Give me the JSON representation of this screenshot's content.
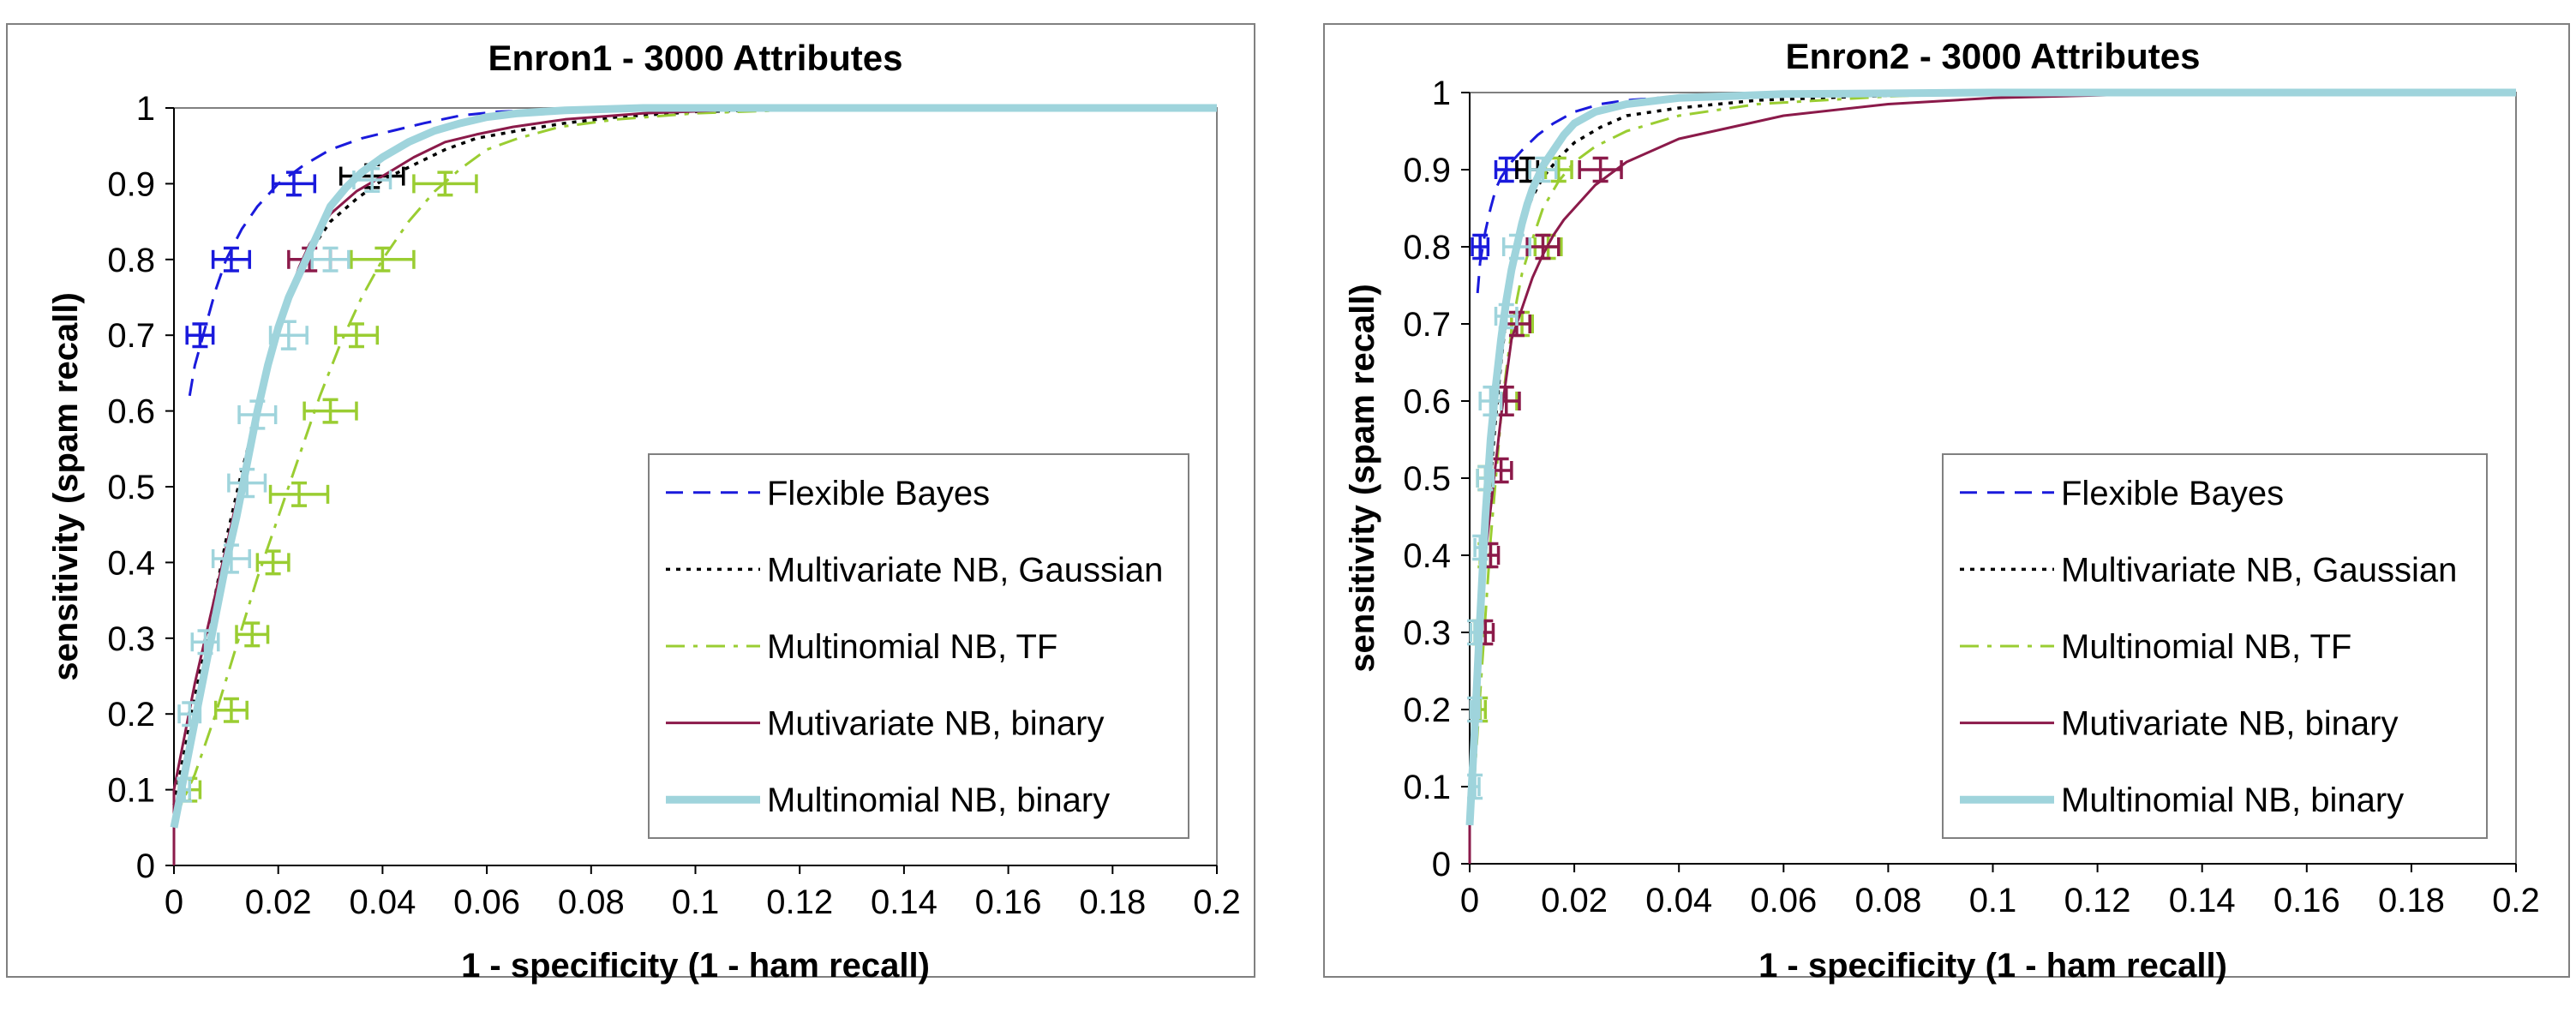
{
  "chart_data": [
    {
      "type": "line",
      "title": "Enron1 - 3000 Attributes",
      "xlabel": "1 - specificity (1 - ham recall)",
      "ylabel": "sensitivity (spam recall)",
      "xlim": [
        0,
        0.2
      ],
      "ylim": [
        0,
        1
      ],
      "xticks": [
        "0",
        "0.02",
        "0.04",
        "0.06",
        "0.08",
        "0.1",
        "0.12",
        "0.14",
        "0.16",
        "0.18",
        "0.2"
      ],
      "yticks": [
        "0",
        "0.1",
        "0.2",
        "0.3",
        "0.4",
        "0.5",
        "0.6",
        "0.7",
        "0.8",
        "0.9",
        "1"
      ],
      "grid": false,
      "legend_position": "lower-right",
      "series": [
        {
          "name": "Flexible Bayes",
          "color": "#1a1adc",
          "dash": "dash",
          "x": [
            0.003,
            0.004,
            0.006,
            0.008,
            0.01,
            0.013,
            0.016,
            0.02,
            0.025,
            0.03,
            0.036,
            0.042,
            0.048,
            0.055,
            0.062,
            0.075,
            0.09,
            0.11,
            0.14,
            0.2
          ],
          "y": [
            0.62,
            0.66,
            0.71,
            0.76,
            0.8,
            0.84,
            0.87,
            0.9,
            0.925,
            0.945,
            0.96,
            0.97,
            0.98,
            0.99,
            0.995,
            0.998,
            1.0,
            1.0,
            1.0,
            1.0
          ],
          "error_points": [
            {
              "x": 0.005,
              "y": 0.7,
              "xerr": 0.0025,
              "yerr": 0.015
            },
            {
              "x": 0.011,
              "y": 0.8,
              "xerr": 0.0035,
              "yerr": 0.015
            },
            {
              "x": 0.023,
              "y": 0.9,
              "xerr": 0.004,
              "yerr": 0.015
            }
          ]
        },
        {
          "name": "Multivariate NB, Gaussian",
          "color": "#000000",
          "dash": "dot",
          "x": [
            0.0,
            0.002,
            0.004,
            0.006,
            0.008,
            0.01,
            0.013,
            0.016,
            0.019,
            0.022,
            0.026,
            0.03,
            0.035,
            0.04,
            0.046,
            0.052,
            0.058,
            0.066,
            0.075,
            0.085,
            0.1,
            0.13,
            0.2
          ],
          "y": [
            0.08,
            0.15,
            0.22,
            0.29,
            0.36,
            0.43,
            0.52,
            0.6,
            0.68,
            0.75,
            0.81,
            0.85,
            0.88,
            0.905,
            0.925,
            0.945,
            0.96,
            0.97,
            0.98,
            0.988,
            0.995,
            1.0,
            1.0
          ],
          "error_points": [
            {
              "x": 0.038,
              "y": 0.91,
              "xerr": 0.006,
              "yerr": 0.015
            }
          ]
        },
        {
          "name": "Multinomial NB, TF",
          "color": "#9acd32",
          "dash": "dashdot",
          "x": [
            0.0,
            0.004,
            0.008,
            0.012,
            0.016,
            0.02,
            0.024,
            0.028,
            0.032,
            0.036,
            0.04,
            0.045,
            0.05,
            0.055,
            0.06,
            0.066,
            0.074,
            0.085,
            0.1,
            0.13,
            0.2
          ],
          "y": [
            0.06,
            0.12,
            0.2,
            0.29,
            0.38,
            0.46,
            0.54,
            0.62,
            0.69,
            0.75,
            0.8,
            0.85,
            0.89,
            0.92,
            0.945,
            0.96,
            0.975,
            0.985,
            0.993,
            1.0,
            1.0
          ],
          "error_points": [
            {
              "x": 0.003,
              "y": 0.1,
              "xerr": 0.002,
              "yerr": 0.015
            },
            {
              "x": 0.011,
              "y": 0.205,
              "xerr": 0.003,
              "yerr": 0.015
            },
            {
              "x": 0.015,
              "y": 0.305,
              "xerr": 0.003,
              "yerr": 0.015
            },
            {
              "x": 0.019,
              "y": 0.4,
              "xerr": 0.003,
              "yerr": 0.015
            },
            {
              "x": 0.024,
              "y": 0.49,
              "xerr": 0.0055,
              "yerr": 0.015
            },
            {
              "x": 0.03,
              "y": 0.6,
              "xerr": 0.005,
              "yerr": 0.015
            },
            {
              "x": 0.035,
              "y": 0.7,
              "xerr": 0.004,
              "yerr": 0.015
            },
            {
              "x": 0.04,
              "y": 0.8,
              "xerr": 0.006,
              "yerr": 0.015
            },
            {
              "x": 0.052,
              "y": 0.9,
              "xerr": 0.006,
              "yerr": 0.015
            }
          ]
        },
        {
          "name": "Mutivariate NB, binary",
          "color": "#8b1a4a",
          "dash": "solid",
          "x": [
            0.0,
            0.0,
            0.002,
            0.004,
            0.006,
            0.008,
            0.01,
            0.012,
            0.014,
            0.016,
            0.018,
            0.02,
            0.022,
            0.024,
            0.026,
            0.03,
            0.035,
            0.04,
            0.046,
            0.052,
            0.058,
            0.065,
            0.075,
            0.09,
            0.11,
            0.2
          ],
          "y": [
            0.0,
            0.1,
            0.17,
            0.24,
            0.3,
            0.36,
            0.42,
            0.48,
            0.54,
            0.6,
            0.66,
            0.71,
            0.75,
            0.79,
            0.82,
            0.86,
            0.89,
            0.91,
            0.935,
            0.955,
            0.965,
            0.975,
            0.985,
            0.993,
            0.998,
            1.0
          ],
          "error_points": [
            {
              "x": 0.026,
              "y": 0.8,
              "xerr": 0.004,
              "yerr": 0.015
            }
          ]
        },
        {
          "name": "Multinomial NB, binary",
          "color": "#9fd4dc",
          "dash": "thick",
          "x": [
            0.0,
            0.002,
            0.004,
            0.006,
            0.008,
            0.01,
            0.012,
            0.014,
            0.016,
            0.018,
            0.02,
            0.022,
            0.024,
            0.026,
            0.028,
            0.03,
            0.033,
            0.036,
            0.04,
            0.045,
            0.05,
            0.055,
            0.06,
            0.066,
            0.075,
            0.09,
            0.2
          ],
          "y": [
            0.05,
            0.12,
            0.19,
            0.26,
            0.33,
            0.4,
            0.46,
            0.53,
            0.6,
            0.66,
            0.71,
            0.75,
            0.78,
            0.81,
            0.84,
            0.87,
            0.895,
            0.915,
            0.935,
            0.955,
            0.97,
            0.98,
            0.988,
            0.993,
            0.997,
            1.0,
            1.0
          ],
          "error_points": [
            {
              "x": 0.002,
              "y": 0.1,
              "xerr": 0.001,
              "yerr": 0.015
            },
            {
              "x": 0.003,
              "y": 0.2,
              "xerr": 0.002,
              "yerr": 0.015
            },
            {
              "x": 0.006,
              "y": 0.295,
              "xerr": 0.0025,
              "yerr": 0.015
            },
            {
              "x": 0.011,
              "y": 0.405,
              "xerr": 0.0035,
              "yerr": 0.018
            },
            {
              "x": 0.014,
              "y": 0.505,
              "xerr": 0.0035,
              "yerr": 0.018
            },
            {
              "x": 0.016,
              "y": 0.595,
              "xerr": 0.0035,
              "yerr": 0.018
            },
            {
              "x": 0.022,
              "y": 0.7,
              "xerr": 0.0035,
              "yerr": 0.018
            },
            {
              "x": 0.03,
              "y": 0.8,
              "xerr": 0.0035,
              "yerr": 0.015
            },
            {
              "x": 0.038,
              "y": 0.905,
              "xerr": 0.0035,
              "yerr": 0.015
            }
          ]
        }
      ]
    },
    {
      "type": "line",
      "title": "Enron2 - 3000 Attributes",
      "xlabel": "1 - specificity (1 - ham recall)",
      "ylabel": "sensitivity (spam recall)",
      "xlim": [
        0,
        0.2
      ],
      "ylim": [
        0,
        1
      ],
      "xticks": [
        "0",
        "0.02",
        "0.04",
        "0.06",
        "0.08",
        "0.1",
        "0.12",
        "0.14",
        "0.16",
        "0.18",
        "0.2"
      ],
      "yticks": [
        "0",
        "0.1",
        "0.2",
        "0.3",
        "0.4",
        "0.5",
        "0.6",
        "0.7",
        "0.8",
        "0.9",
        "1"
      ],
      "grid": false,
      "legend_position": "lower-right",
      "series": [
        {
          "name": "Flexible Bayes",
          "color": "#1a1adc",
          "dash": "dash",
          "x": [
            0.0015,
            0.002,
            0.003,
            0.004,
            0.005,
            0.006,
            0.008,
            0.01,
            0.013,
            0.016,
            0.02,
            0.025,
            0.03,
            0.04,
            0.06,
            0.1,
            0.2
          ],
          "y": [
            0.74,
            0.78,
            0.82,
            0.85,
            0.875,
            0.89,
            0.91,
            0.925,
            0.945,
            0.96,
            0.975,
            0.985,
            0.99,
            0.995,
            1.0,
            1.0,
            1.0
          ],
          "error_points": [
            {
              "x": 0.002,
              "y": 0.8,
              "xerr": 0.0015,
              "yerr": 0.015
            },
            {
              "x": 0.007,
              "y": 0.9,
              "xerr": 0.002,
              "yerr": 0.015
            }
          ]
        },
        {
          "name": "Multivariate NB, Gaussian",
          "color": "#000000",
          "dash": "dot",
          "x": [
            0.0,
            0.001,
            0.002,
            0.003,
            0.004,
            0.005,
            0.006,
            0.007,
            0.008,
            0.009,
            0.01,
            0.012,
            0.014,
            0.017,
            0.02,
            0.025,
            0.03,
            0.04,
            0.055,
            0.075,
            0.1,
            0.2
          ],
          "y": [
            0.05,
            0.15,
            0.28,
            0.4,
            0.5,
            0.58,
            0.65,
            0.71,
            0.76,
            0.8,
            0.83,
            0.865,
            0.89,
            0.915,
            0.935,
            0.955,
            0.97,
            0.98,
            0.99,
            0.995,
            1.0,
            1.0
          ],
          "error_points": [
            {
              "x": 0.011,
              "y": 0.9,
              "xerr": 0.002,
              "yerr": 0.015
            }
          ]
        },
        {
          "name": "Multinomial NB, TF",
          "color": "#9acd32",
          "dash": "dashdot",
          "x": [
            0.0,
            0.001,
            0.002,
            0.003,
            0.004,
            0.005,
            0.006,
            0.007,
            0.008,
            0.009,
            0.01,
            0.012,
            0.014,
            0.017,
            0.02,
            0.024,
            0.03,
            0.04,
            0.055,
            0.08,
            0.1,
            0.2
          ],
          "y": [
            0.05,
            0.12,
            0.22,
            0.32,
            0.42,
            0.5,
            0.58,
            0.64,
            0.69,
            0.73,
            0.765,
            0.81,
            0.85,
            0.885,
            0.91,
            0.93,
            0.95,
            0.97,
            0.985,
            0.995,
            1.0,
            1.0
          ],
          "error_points": [
            {
              "x": 0.002,
              "y": 0.2,
              "xerr": 0.001,
              "yerr": 0.015
            },
            {
              "x": 0.002,
              "y": 0.3,
              "xerr": 0.001,
              "yerr": 0.015
            },
            {
              "x": 0.003,
              "y": 0.4,
              "xerr": 0.001,
              "yerr": 0.015
            },
            {
              "x": 0.003,
              "y": 0.5,
              "xerr": 0.0015,
              "yerr": 0.015
            },
            {
              "x": 0.007,
              "y": 0.6,
              "xerr": 0.002,
              "yerr": 0.018
            },
            {
              "x": 0.01,
              "y": 0.7,
              "xerr": 0.002,
              "yerr": 0.015
            },
            {
              "x": 0.015,
              "y": 0.8,
              "xerr": 0.0025,
              "yerr": 0.015
            },
            {
              "x": 0.017,
              "y": 0.9,
              "xerr": 0.0025,
              "yerr": 0.015
            }
          ]
        },
        {
          "name": "Mutivariate NB, binary",
          "color": "#8b1a4a",
          "dash": "solid",
          "x": [
            0.0,
            0.0,
            0.001,
            0.002,
            0.003,
            0.004,
            0.005,
            0.006,
            0.007,
            0.008,
            0.01,
            0.012,
            0.014,
            0.016,
            0.018,
            0.02,
            0.022,
            0.024,
            0.027,
            0.03,
            0.035,
            0.04,
            0.05,
            0.06,
            0.08,
            0.1,
            0.13,
            0.2
          ],
          "y": [
            0.0,
            0.1,
            0.22,
            0.32,
            0.4,
            0.46,
            0.52,
            0.58,
            0.63,
            0.68,
            0.72,
            0.76,
            0.79,
            0.815,
            0.835,
            0.85,
            0.865,
            0.88,
            0.895,
            0.91,
            0.925,
            0.94,
            0.955,
            0.97,
            0.985,
            0.993,
            0.998,
            1.0
          ],
          "error_points": [
            {
              "x": 0.003,
              "y": 0.3,
              "xerr": 0.0015,
              "yerr": 0.015
            },
            {
              "x": 0.004,
              "y": 0.4,
              "xerr": 0.0015,
              "yerr": 0.015
            },
            {
              "x": 0.006,
              "y": 0.51,
              "xerr": 0.002,
              "yerr": 0.015
            },
            {
              "x": 0.007,
              "y": 0.6,
              "xerr": 0.0025,
              "yerr": 0.018
            },
            {
              "x": 0.009,
              "y": 0.7,
              "xerr": 0.0025,
              "yerr": 0.015
            },
            {
              "x": 0.014,
              "y": 0.8,
              "xerr": 0.003,
              "yerr": 0.015
            },
            {
              "x": 0.025,
              "y": 0.9,
              "xerr": 0.004,
              "yerr": 0.015
            }
          ]
        },
        {
          "name": "Multinomial NB, binary",
          "color": "#9fd4dc",
          "dash": "thick",
          "x": [
            0.0,
            0.001,
            0.002,
            0.003,
            0.004,
            0.005,
            0.006,
            0.007,
            0.008,
            0.009,
            0.01,
            0.011,
            0.012,
            0.014,
            0.016,
            0.018,
            0.02,
            0.024,
            0.03,
            0.04,
            0.06,
            0.1,
            0.2
          ],
          "y": [
            0.05,
            0.18,
            0.32,
            0.45,
            0.55,
            0.62,
            0.68,
            0.73,
            0.77,
            0.8,
            0.83,
            0.855,
            0.875,
            0.905,
            0.925,
            0.945,
            0.96,
            0.975,
            0.985,
            0.993,
            0.998,
            1.0,
            1.0
          ],
          "error_points": [
            {
              "x": 0.001,
              "y": 0.1,
              "xerr": 0.0008,
              "yerr": 0.015
            },
            {
              "x": 0.001,
              "y": 0.2,
              "xerr": 0.0008,
              "yerr": 0.015
            },
            {
              "x": 0.001,
              "y": 0.3,
              "xerr": 0.0008,
              "yerr": 0.015
            },
            {
              "x": 0.002,
              "y": 0.41,
              "xerr": 0.001,
              "yerr": 0.015
            },
            {
              "x": 0.003,
              "y": 0.5,
              "xerr": 0.0015,
              "yerr": 0.015
            },
            {
              "x": 0.004,
              "y": 0.6,
              "xerr": 0.002,
              "yerr": 0.018
            },
            {
              "x": 0.007,
              "y": 0.71,
              "xerr": 0.002,
              "yerr": 0.015
            },
            {
              "x": 0.009,
              "y": 0.8,
              "xerr": 0.0025,
              "yerr": 0.015
            },
            {
              "x": 0.014,
              "y": 0.9,
              "xerr": 0.0025,
              "yerr": 0.015
            }
          ]
        }
      ]
    }
  ]
}
